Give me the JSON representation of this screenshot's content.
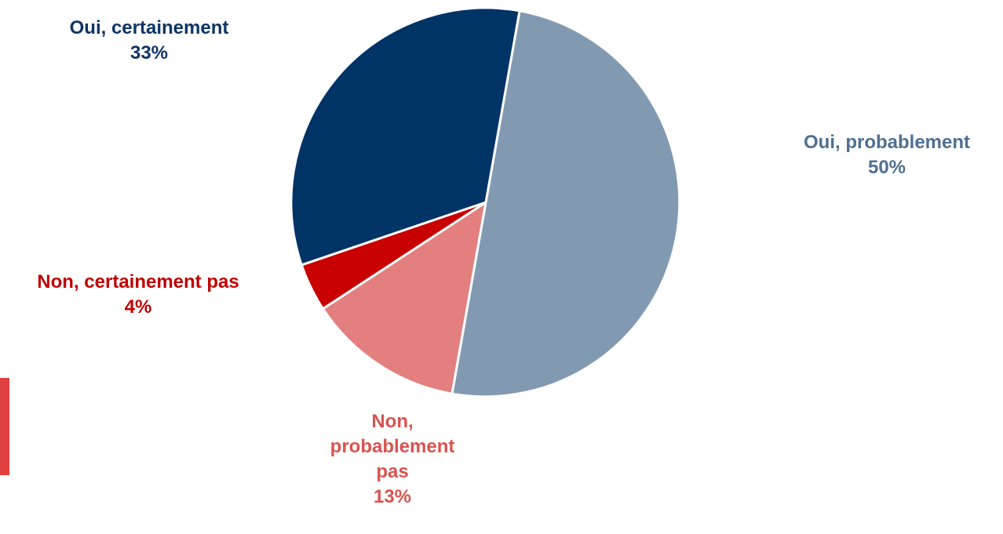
{
  "chart_data": {
    "type": "pie",
    "slices": [
      {
        "label": "Oui, certainement",
        "value": 33,
        "display": "33%",
        "color": "#003366",
        "label_color": "#0d3566"
      },
      {
        "label": "Oui, probablement",
        "value": 50,
        "display": "50%",
        "color": "#829AB1",
        "label_color": "#4f6f92"
      },
      {
        "label": "Non, probablement pas",
        "value": 13,
        "display": "13%",
        "color": "#E3807F",
        "label_color": "#d9534f"
      },
      {
        "label": "Non, certainement pas",
        "value": 4,
        "display": "4%",
        "color": "#C80000",
        "label_color": "#c00000"
      }
    ],
    "start_angle_deg": 10,
    "direction": "clockwise"
  }
}
